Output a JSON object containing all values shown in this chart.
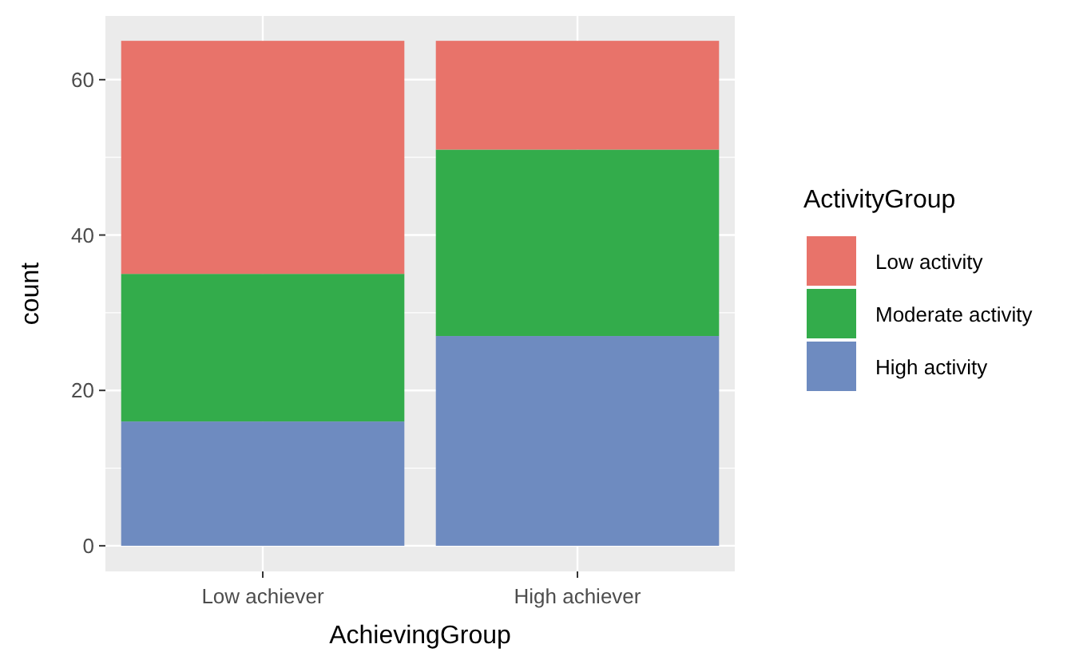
{
  "chart_data": {
    "type": "bar",
    "stacked": true,
    "xlabel": "AchievingGroup",
    "ylabel": "count",
    "legend_title": "ActivityGroup",
    "legend": "right",
    "grid": true,
    "categories": [
      "Low achiever",
      "High achiever"
    ],
    "series": [
      {
        "name": "High activity",
        "color": "#6e8bc0",
        "values": [
          16,
          27
        ]
      },
      {
        "name": "Moderate activity",
        "color": "#33ac4b",
        "values": [
          19,
          24
        ]
      },
      {
        "name": "Low activity",
        "color": "#e8736a",
        "values": [
          30,
          14
        ]
      }
    ],
    "ylim": [
      -3.3,
      68.2
    ],
    "yticks": [
      0,
      20,
      40,
      60
    ]
  }
}
